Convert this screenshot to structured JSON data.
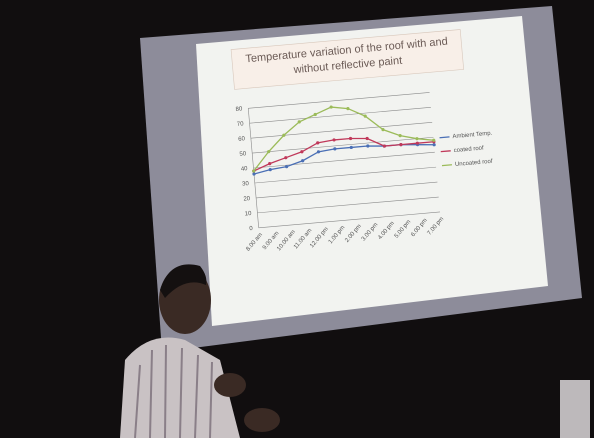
{
  "chart_data": {
    "type": "line",
    "title": "Temperature variation of the roof with and without reflective paint",
    "categories": [
      "8.00 am",
      "9.00 am",
      "10.00 am",
      "11.00 am",
      "12.00 pm",
      "1.00 pm",
      "2.00 pm",
      "3.00 pm",
      "4.00 pm",
      "5.00 pm",
      "6.00 pm",
      "7.00 pm"
    ],
    "series": [
      {
        "name": "Ambient Temp.",
        "color": "#4a6fb5",
        "values": [
          36,
          38,
          39,
          42,
          47,
          48,
          48,
          48,
          47,
          47,
          46,
          45
        ]
      },
      {
        "name": "coated roof",
        "color": "#c0395a",
        "values": [
          38,
          42,
          45,
          48,
          53,
          54,
          54,
          53,
          47,
          47,
          47,
          47
        ]
      },
      {
        "name": "Uncoated roof",
        "color": "#9bbb59",
        "values": [
          38,
          50,
          60,
          68,
          72,
          76,
          74,
          68,
          58,
          53,
          50,
          48
        ]
      }
    ],
    "ylim": [
      0,
      80
    ],
    "yticks": [
      0,
      10,
      20,
      30,
      40,
      50,
      60,
      70,
      80
    ],
    "grid": true,
    "legend": "right"
  }
}
